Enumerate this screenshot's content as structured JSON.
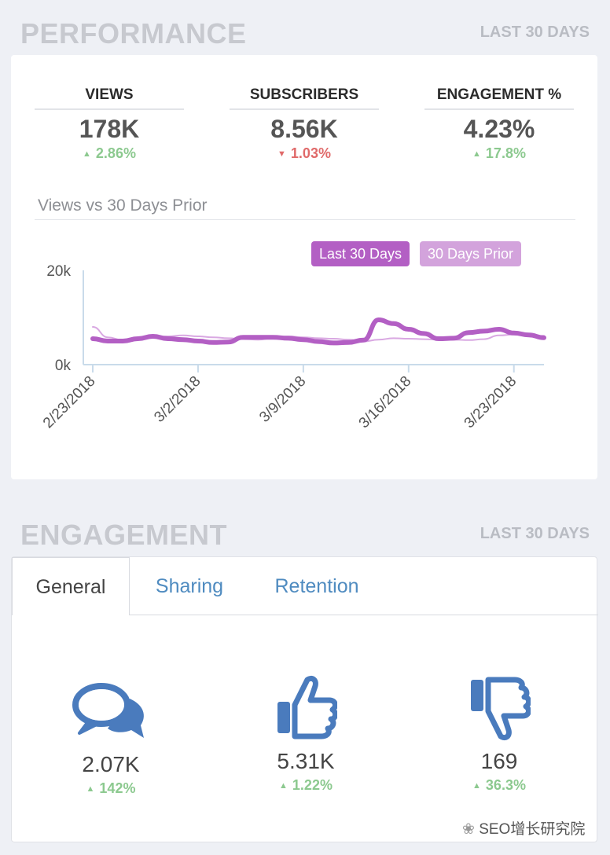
{
  "performance": {
    "title": "PERFORMANCE",
    "range": "LAST 30 DAYS",
    "kpis": [
      {
        "label": "VIEWS",
        "value": "178K",
        "delta": "2.86%",
        "direction": "up"
      },
      {
        "label": "SUBSCRIBERS",
        "value": "8.56K",
        "delta": "1.03%",
        "direction": "down"
      },
      {
        "label": "ENGAGEMENT %",
        "value": "4.23%",
        "delta": "17.8%",
        "direction": "up"
      }
    ],
    "chart_title": "Views vs 30 Days Prior"
  },
  "chart_data": {
    "type": "line",
    "title": "Views vs 30 Days Prior",
    "x": [
      "2/23/2018",
      "2/24/2018",
      "2/25/2018",
      "2/26/2018",
      "2/27/2018",
      "2/28/2018",
      "3/1/2018",
      "3/2/2018",
      "3/3/2018",
      "3/4/2018",
      "3/5/2018",
      "3/6/2018",
      "3/7/2018",
      "3/8/2018",
      "3/9/2018",
      "3/10/2018",
      "3/11/2018",
      "3/12/2018",
      "3/13/2018",
      "3/14/2018",
      "3/15/2018",
      "3/16/2018",
      "3/17/2018",
      "3/18/2018",
      "3/19/2018",
      "3/20/2018",
      "3/21/2018",
      "3/22/2018",
      "3/23/2018",
      "3/24/2018",
      "3/25/2018"
    ],
    "xticks": [
      "2/23/2018",
      "3/2/2018",
      "3/9/2018",
      "3/16/2018",
      "3/23/2018"
    ],
    "ylim": [
      0,
      20000
    ],
    "yticks": [
      "0k",
      "20k"
    ],
    "series": [
      {
        "name": "Last 30 Days",
        "color": "#b35fc4",
        "values": [
          5500,
          5000,
          5000,
          5500,
          6000,
          5500,
          5300,
          5000,
          4700,
          4800,
          5800,
          5800,
          5800,
          5600,
          5300,
          4900,
          4600,
          4700,
          5200,
          9500,
          8700,
          7500,
          6600,
          5500,
          5600,
          6800,
          7100,
          7500,
          6700,
          6300,
          5700
        ]
      },
      {
        "name": "30 Days Prior",
        "color": "#d9a8e2",
        "values": [
          8000,
          5800,
          5200,
          5500,
          5800,
          6000,
          6200,
          6000,
          5800,
          5600,
          5400,
          5300,
          5600,
          6000,
          5800,
          5600,
          5500,
          5300,
          4900,
          5300,
          5600,
          5500,
          5400,
          5300,
          5300,
          5200,
          5400,
          6200,
          6400,
          6200,
          6100
        ]
      }
    ]
  },
  "engagement": {
    "title": "ENGAGEMENT",
    "range": "LAST 30 DAYS",
    "tabs": [
      "General",
      "Sharing",
      "Retention"
    ],
    "items": [
      {
        "icon": "comments-icon",
        "value": "2.07K",
        "delta": "142%",
        "direction": "up"
      },
      {
        "icon": "thumbs-up-icon",
        "value": "5.31K",
        "delta": "1.22%",
        "direction": "up"
      },
      {
        "icon": "thumbs-down-icon",
        "value": "169",
        "delta": "36.3%",
        "direction": "up"
      }
    ]
  },
  "watermark": "SEO增长研究院",
  "colors": {
    "up": "#8cc98f",
    "down": "#e06a6a",
    "icon_blue": "#4a7bbd",
    "tab_link": "#4f8bc0"
  }
}
